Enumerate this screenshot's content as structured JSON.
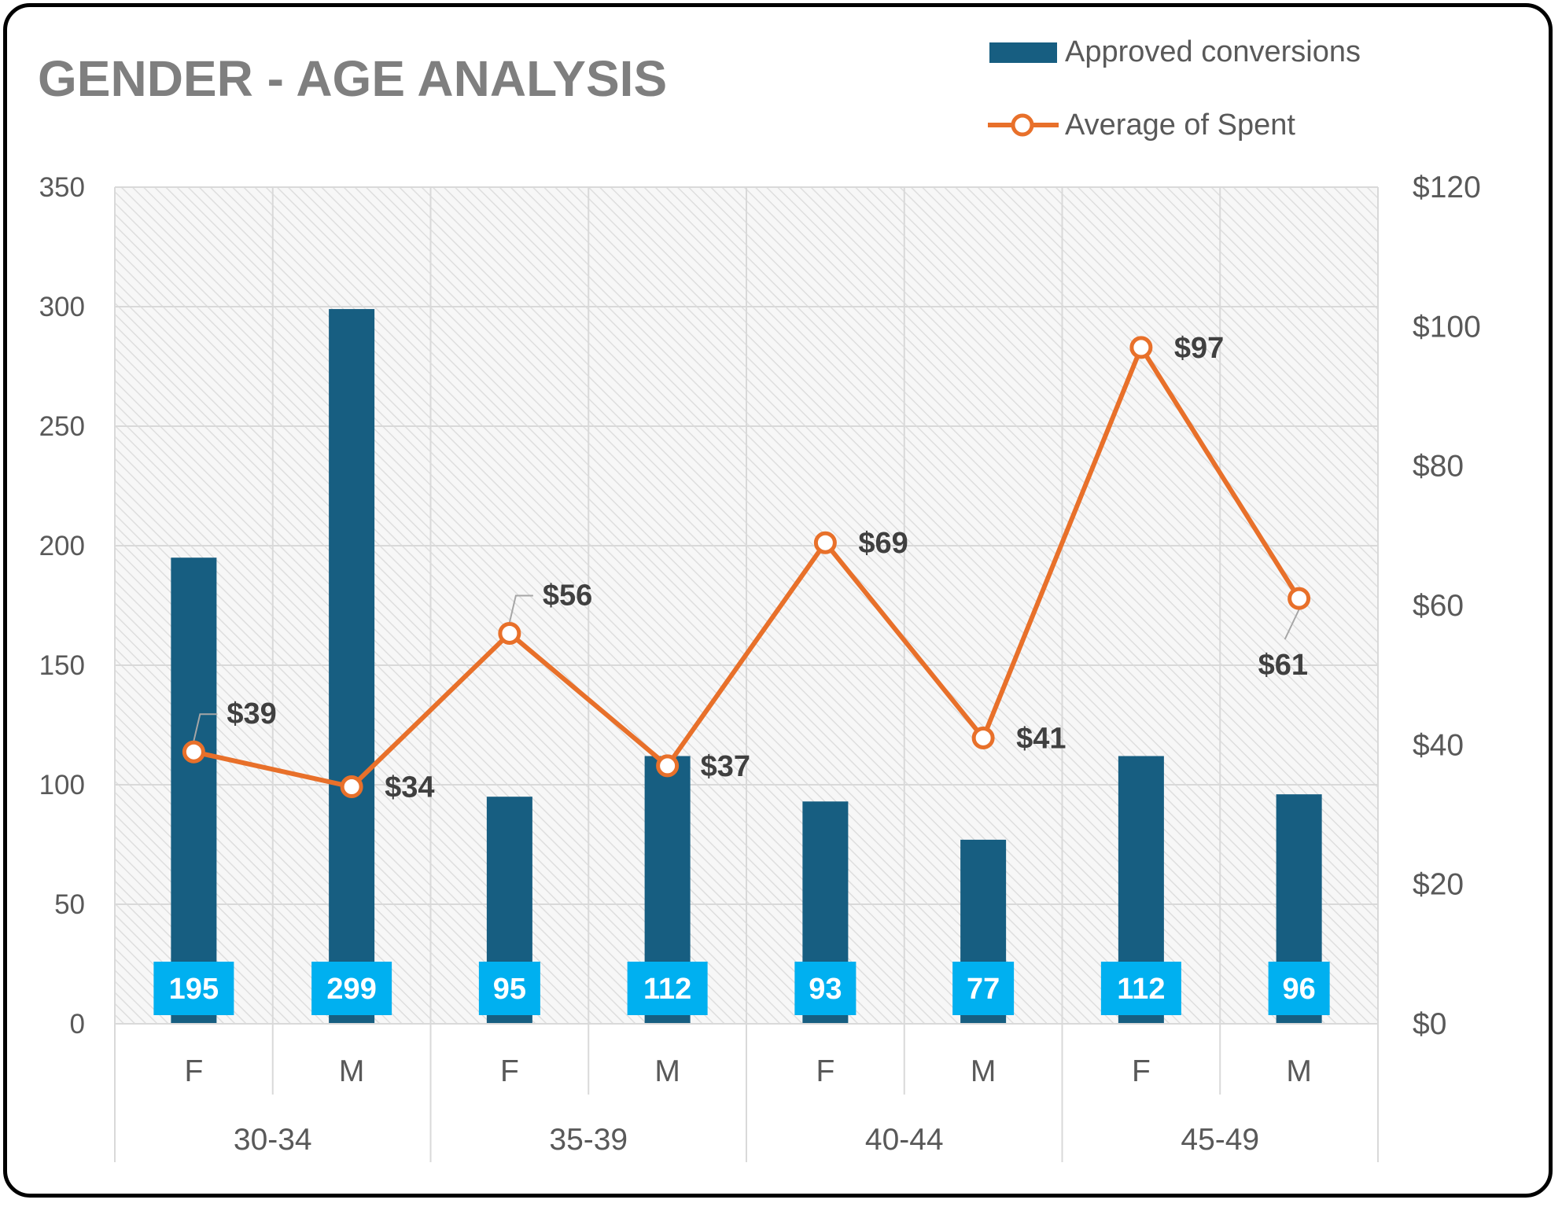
{
  "chart_data": {
    "type": "bar",
    "title": "GENDER - AGE ANALYSIS",
    "groups": [
      "30-34",
      "35-39",
      "40-44",
      "45-49"
    ],
    "categories": [
      "F",
      "M",
      "F",
      "M",
      "F",
      "M",
      "F",
      "M"
    ],
    "series": [
      {
        "name": "Approved conversions",
        "type": "bar",
        "axis": "left",
        "values": [
          195,
          299,
          95,
          112,
          93,
          77,
          112,
          96
        ],
        "labels": [
          "195",
          "299",
          "95",
          "112",
          "93",
          "77",
          "112",
          "96"
        ]
      },
      {
        "name": "Average of Spent",
        "type": "line",
        "axis": "right",
        "values": [
          39,
          34,
          56,
          37,
          69,
          41,
          97,
          61
        ],
        "labels": [
          "$39",
          "$34",
          "$56",
          "$37",
          "$69",
          "$41",
          "$97",
          "$61"
        ]
      }
    ],
    "left_axis": {
      "ylim": [
        0,
        350
      ],
      "ticks": [
        "0",
        "50",
        "100",
        "150",
        "200",
        "250",
        "300",
        "350"
      ]
    },
    "right_axis": {
      "ylim": [
        0,
        120
      ],
      "ticks": [
        "$0",
        "$20",
        "$40",
        "$60",
        "$80",
        "$100",
        "$120"
      ]
    },
    "grid": true,
    "legend_position": "top-right"
  },
  "colors": {
    "bar": "#175e81",
    "line": "#e8702a",
    "label_bg": "#00b0f0"
  }
}
